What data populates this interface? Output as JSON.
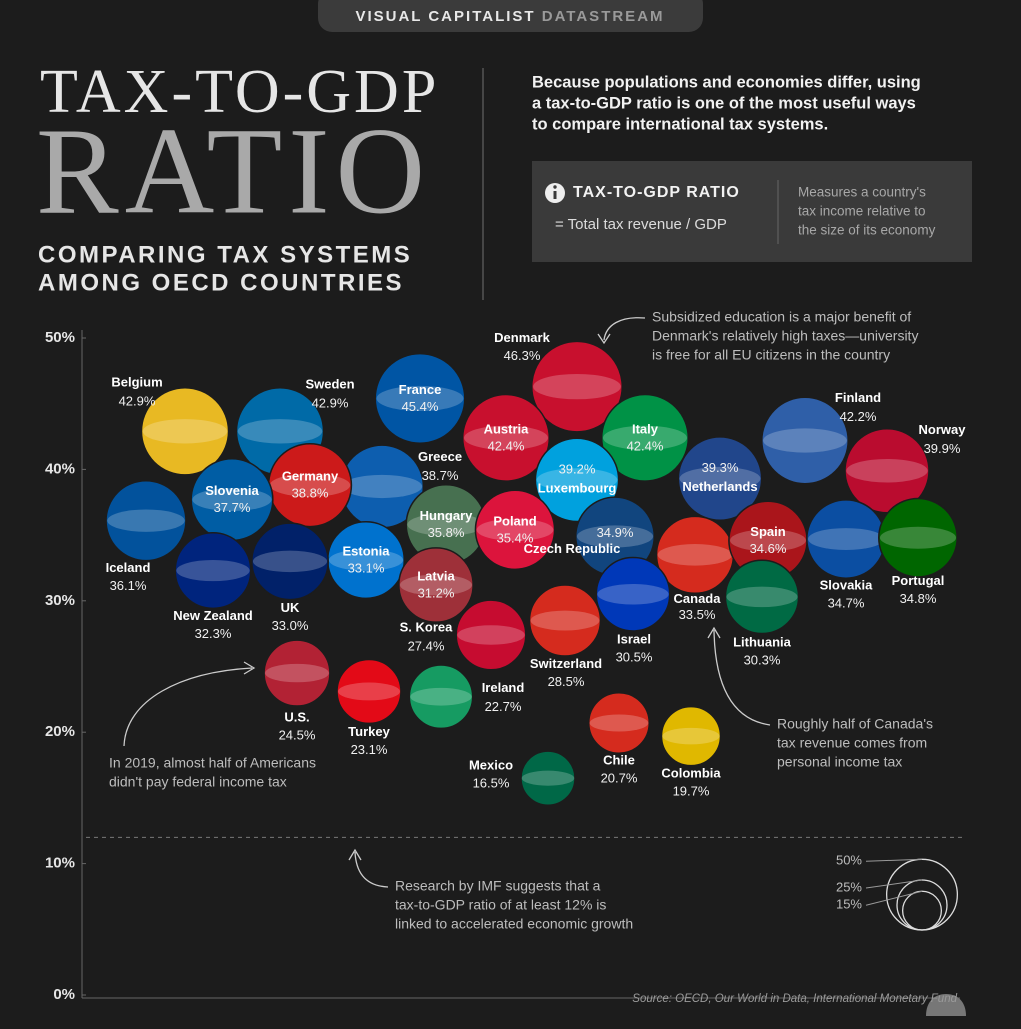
{
  "header": {
    "brand": "VISUAL CAPITALIST",
    "brand_accent": "DATASTREAM",
    "title_line1": "TAX-TO-GDP",
    "title_line2": "RATIO",
    "subtitle_lines": [
      "COMPARING TAX SYSTEMS",
      "AMONG OECD COUNTRIES"
    ],
    "intro_lines": [
      "Because populations and economies differ, using",
      "a tax-to-GDP ratio is one of the most useful ways",
      "to compare international tax systems."
    ],
    "definition_term": "TAX-TO-GDP RATIO",
    "definition_formula": "= Total tax revenue / GDP",
    "definition_lines": [
      "Measures a country's",
      "tax income relative to",
      "the size of its economy"
    ]
  },
  "chart_data": {
    "type": "bubble",
    "categories": [
      "Belgium",
      "Sweden",
      "France",
      "Denmark",
      "Austria",
      "Italy",
      "Finland",
      "Norway",
      "Luxembourg",
      "Netherlands",
      "Greece",
      "Germany",
      "Slovenia",
      "Iceland",
      "Hungary",
      "Poland",
      "Czech Republic",
      "Canada",
      "Spain",
      "Slovakia",
      "Portugal",
      "Estonia",
      "New Zealand",
      "UK",
      "Latvia",
      "S. Korea",
      "Switzerland",
      "Israel",
      "Lithuania",
      "U.S.",
      "Turkey",
      "Ireland",
      "Chile",
      "Colombia",
      "Mexico"
    ],
    "values": [
      42.9,
      42.9,
      45.4,
      46.3,
      42.4,
      42.4,
      42.2,
      39.9,
      39.2,
      39.3,
      38.7,
      38.8,
      37.7,
      36.1,
      35.8,
      35.4,
      34.9,
      33.5,
      34.6,
      34.7,
      34.8,
      33.1,
      32.3,
      33.0,
      31.2,
      27.4,
      28.5,
      30.5,
      30.3,
      24.5,
      23.1,
      22.7,
      20.7,
      19.7,
      16.5
    ],
    "value_labels": [
      "42.9%",
      "42.9%",
      "45.4%",
      "46.3%",
      "42.4%",
      "42.4%",
      "42.2%",
      "39.9%",
      "39.2%",
      "39.3%",
      "38.7%",
      "38.8%",
      "37.7%",
      "36.1%",
      "35.8%",
      "35.4%",
      "34.9%",
      "33.5%",
      "34.6%",
      "34.7%",
      "34.8%",
      "33.1%",
      "32.3%",
      "33.0%",
      "31.2%",
      "27.4%",
      "28.5%",
      "30.5%",
      "30.3%",
      "24.5%",
      "23.1%",
      "22.7%",
      "20.7%",
      "19.7%",
      "16.5%"
    ],
    "colors": [
      "#e8b923",
      "#006aa7",
      "#0055a4",
      "#c8102e",
      "#c8102e",
      "#009246",
      "#2f5fa8",
      "#ba0c2f",
      "#00a1de",
      "#21468b",
      "#0d5eaf",
      "#cc1a1a",
      "#005da4",
      "#02529c",
      "#477050",
      "#dc143c",
      "#11457e",
      "#d52b1e",
      "#aa151b",
      "#0b4ea2",
      "#006600",
      "#0072ce",
      "#00247d",
      "#012169",
      "#9e3039",
      "#c60c30",
      "#d52b1e",
      "#0038b8",
      "#006a44",
      "#b22234",
      "#e30a17",
      "#169b62",
      "#d52b1e",
      "#e0b800",
      "#006847"
    ],
    "ylim": [
      0,
      50
    ],
    "yticks": [
      {
        "value": 0,
        "label": "0%"
      },
      {
        "value": 10,
        "label": "10%"
      },
      {
        "value": 20,
        "label": "20%"
      },
      {
        "value": 30,
        "label": "30%"
      },
      {
        "value": 40,
        "label": "40%"
      },
      {
        "value": 50,
        "label": "50%"
      }
    ],
    "threshold": 12,
    "size_legend": [
      {
        "value": 50,
        "label": "50%"
      },
      {
        "value": 25,
        "label": "25%"
      },
      {
        "value": 15,
        "label": "15%"
      }
    ],
    "annotations": [
      [
        "Subsidized education is a major benefit of",
        "Denmark's relatively high taxes—university",
        "is free for all EU citizens in the country"
      ],
      [
        "Roughly half of Canada's",
        "tax revenue comes from",
        "personal income tax"
      ],
      [
        "In 2019, almost half of Americans",
        "didn't pay federal income tax"
      ],
      [
        "Research by IMF suggests that a",
        "tax-to-GDP ratio of at least 12% is",
        "linked to accelerated economic growth"
      ]
    ],
    "source": "Source: OECD, Our World in Data, International Monetary Fund"
  }
}
